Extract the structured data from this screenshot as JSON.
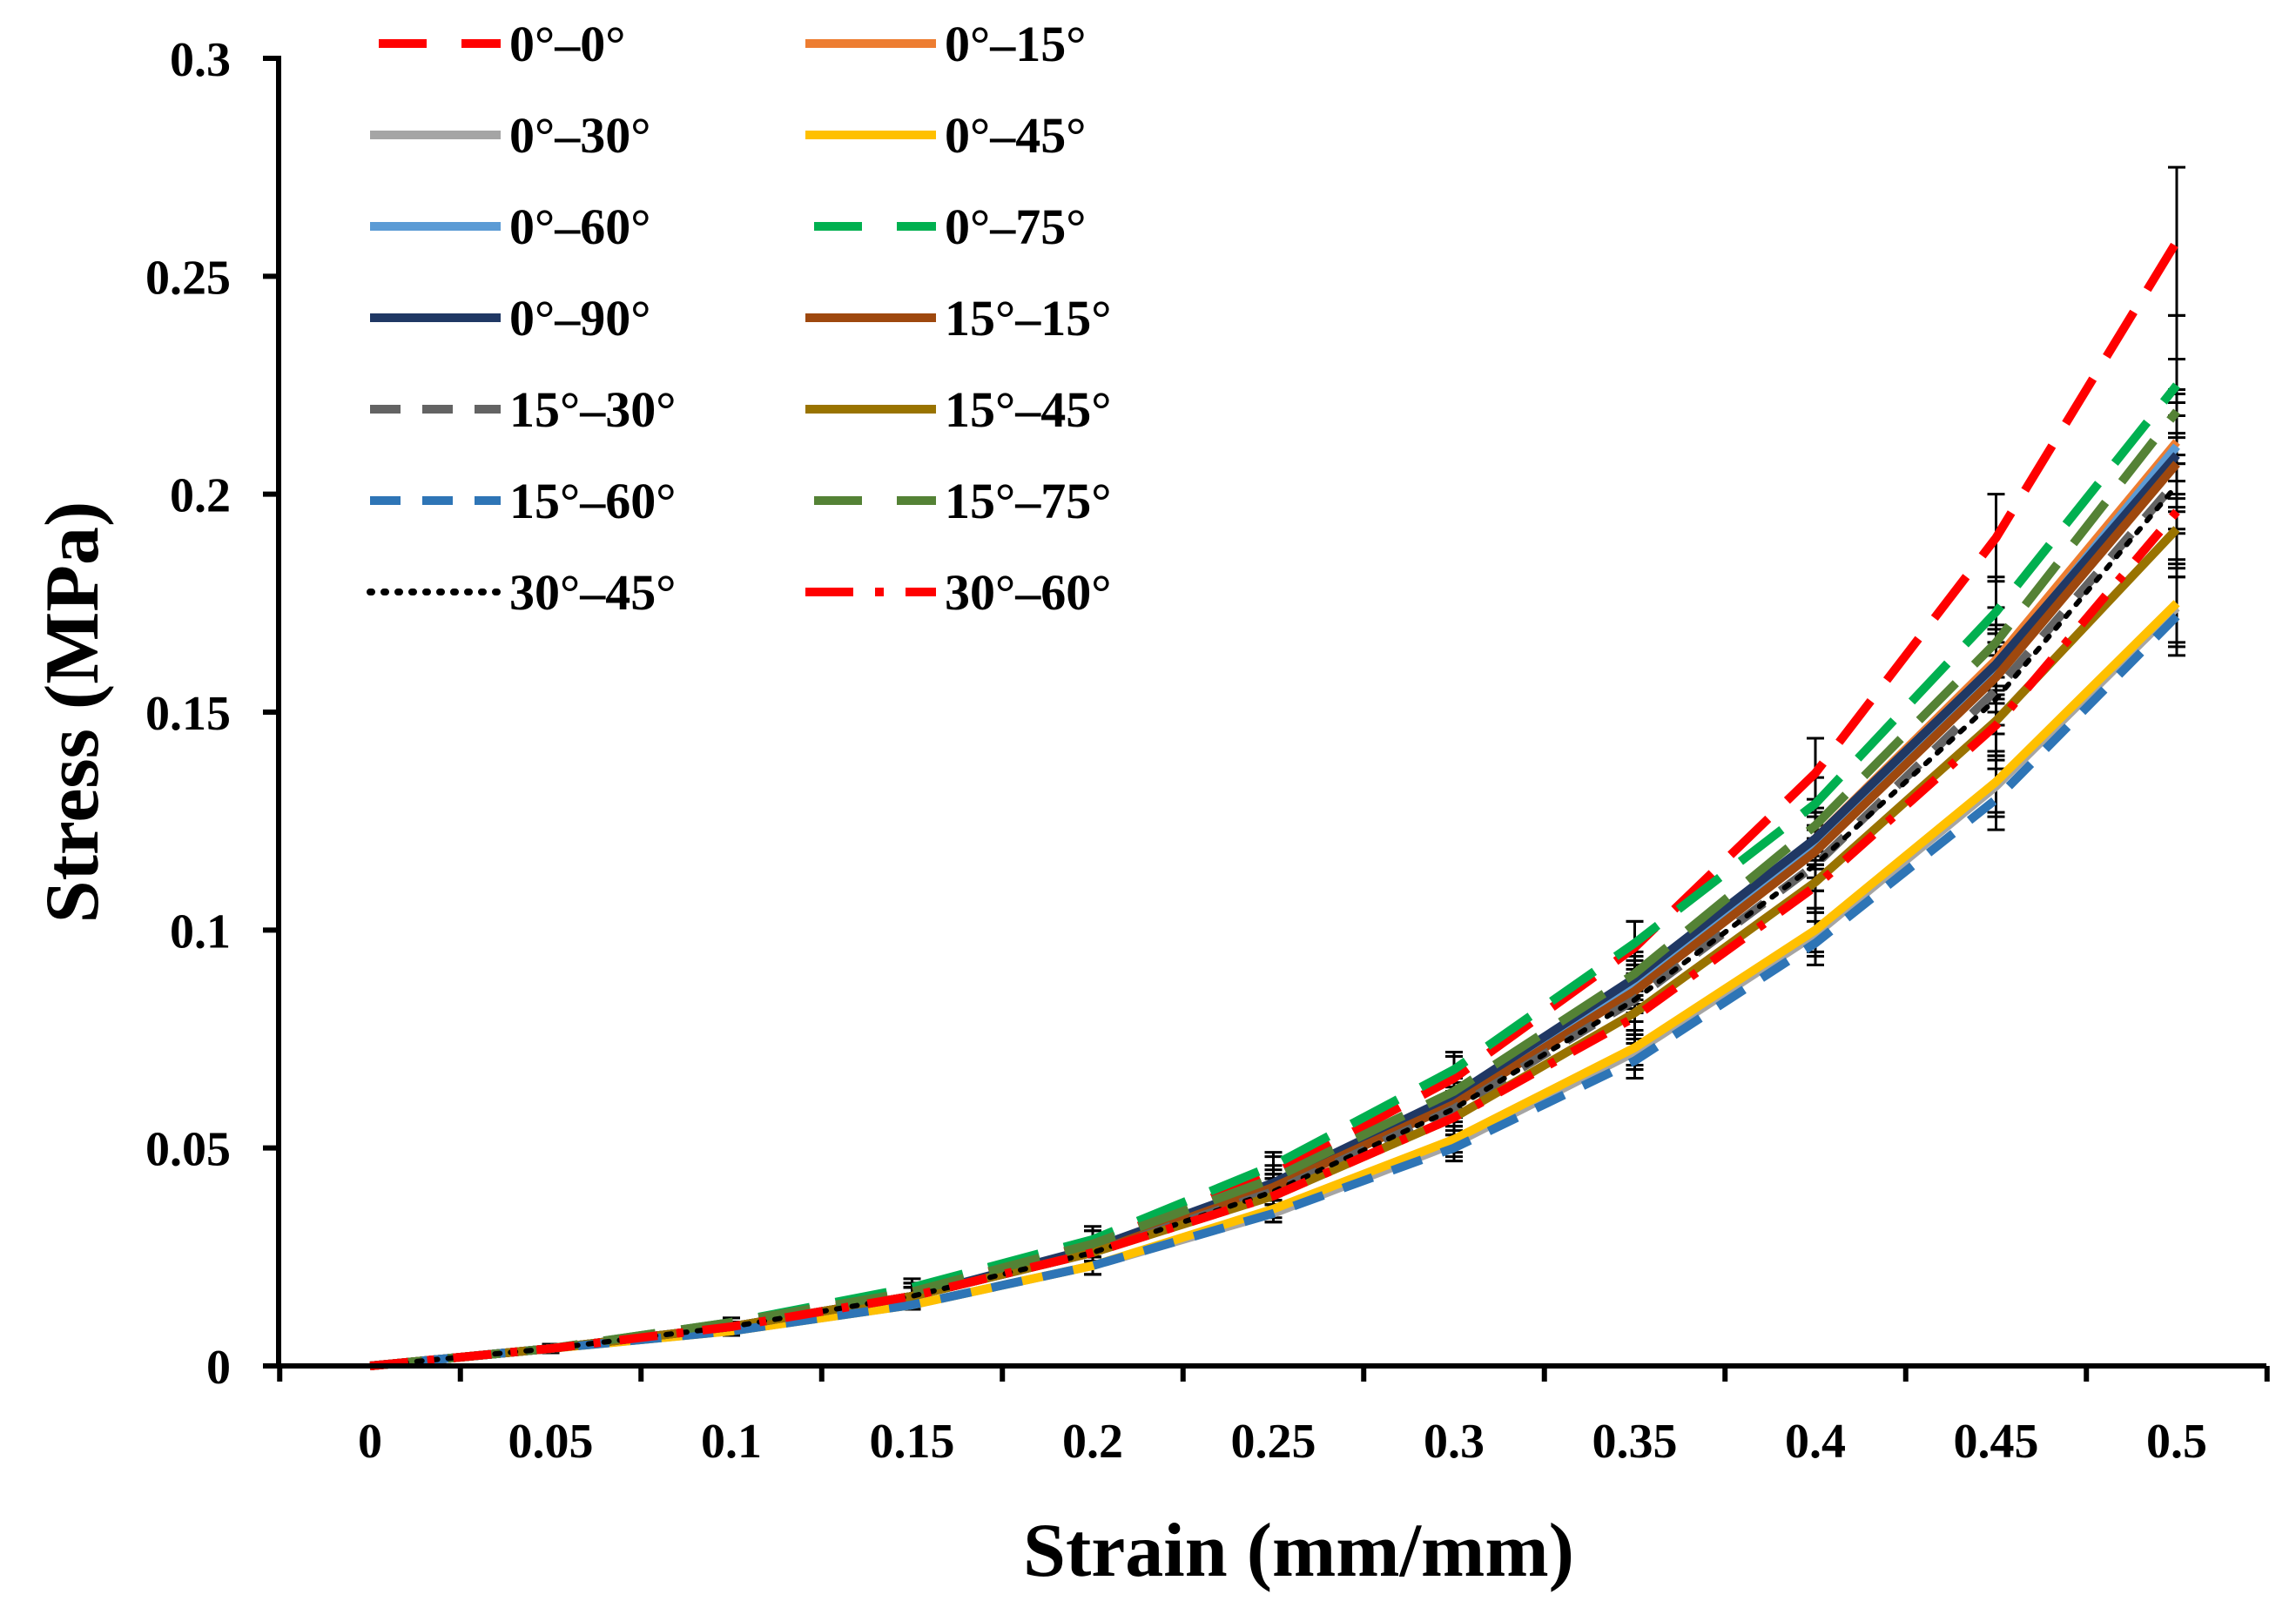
{
  "chart_data": {
    "type": "line",
    "title": "",
    "xlabel": "Strain (mm/mm)",
    "ylabel": "Stress (MPa)",
    "xlim": [
      0,
      0.5
    ],
    "ylim": [
      0,
      0.3
    ],
    "x": [
      0,
      0.05,
      0.1,
      0.15,
      0.2,
      0.25,
      0.3,
      0.35,
      0.4,
      0.45,
      0.5
    ],
    "x_tick_labels": [
      "0",
      "0.05",
      "0.1",
      "0.15",
      "0.2",
      "0.25",
      "0.3",
      "0.35",
      "0.4",
      "0.45",
      "0.5"
    ],
    "y_ticks": [
      0,
      0.05,
      0.1,
      0.15,
      0.2,
      0.25,
      0.3
    ],
    "y_tick_labels": [
      "0",
      "0.05",
      "0.1",
      "0.15",
      "0.2",
      "0.25",
      "0.3"
    ],
    "grid": false,
    "legend_position": "top-left",
    "series": [
      {
        "name": "0°–0°",
        "color": "#ff0000",
        "dash": "longdash",
        "values": [
          0,
          0.004,
          0.009,
          0.017,
          0.028,
          0.044,
          0.066,
          0.096,
          0.136,
          0.19,
          0.258
        ],
        "error": [
          0,
          0.001,
          0.001,
          0.002,
          0.003,
          0.004,
          0.005,
          0.006,
          0.008,
          0.01,
          0.017
        ]
      },
      {
        "name": "0°–15°",
        "color": "#ed7d31",
        "dash": "solid",
        "values": [
          0,
          0.004,
          0.009,
          0.016,
          0.026,
          0.041,
          0.061,
          0.087,
          0.121,
          0.162,
          0.212
        ],
        "error": [
          0,
          0.001,
          0.001,
          0.002,
          0.002,
          0.003,
          0.004,
          0.005,
          0.006,
          0.008,
          0.012
        ]
      },
      {
        "name": "0°–30°",
        "color": "#a5a5a5",
        "dash": "solid",
        "values": [
          0,
          0.004,
          0.008,
          0.014,
          0.023,
          0.035,
          0.051,
          0.072,
          0.099,
          0.133,
          0.174
        ],
        "error": [
          0,
          0.001,
          0.001,
          0.001,
          0.002,
          0.002,
          0.003,
          0.004,
          0.005,
          0.007,
          0.009
        ]
      },
      {
        "name": "0°–45°",
        "color": "#ffc000",
        "dash": "solid",
        "values": [
          0,
          0.004,
          0.008,
          0.014,
          0.023,
          0.036,
          0.052,
          0.073,
          0.1,
          0.134,
          0.175
        ],
        "error": [
          0,
          0.001,
          0.001,
          0.001,
          0.002,
          0.002,
          0.003,
          0.004,
          0.005,
          0.007,
          0.009
        ]
      },
      {
        "name": "0°–60°",
        "color": "#5b9bd5",
        "dash": "solid",
        "values": [
          0,
          0.004,
          0.009,
          0.016,
          0.026,
          0.041,
          0.061,
          0.088,
          0.12,
          0.16,
          0.211
        ],
        "error": [
          0,
          0.001,
          0.001,
          0.002,
          0.002,
          0.003,
          0.004,
          0.005,
          0.006,
          0.008,
          0.012
        ]
      },
      {
        "name": "0°–75°",
        "color": "#00b050",
        "dash": "longdash",
        "values": [
          0,
          0.004,
          0.01,
          0.018,
          0.029,
          0.046,
          0.068,
          0.097,
          0.129,
          0.173,
          0.225
        ],
        "error": [
          0,
          0.001,
          0.001,
          0.002,
          0.003,
          0.003,
          0.004,
          0.005,
          0.006,
          0.008,
          0.016
        ]
      },
      {
        "name": "0°–90°",
        "color": "#203864",
        "dash": "solid",
        "values": [
          0,
          0.004,
          0.009,
          0.016,
          0.027,
          0.042,
          0.062,
          0.089,
          0.121,
          0.161,
          0.209
        ],
        "error": [
          0,
          0.001,
          0.001,
          0.002,
          0.002,
          0.003,
          0.004,
          0.005,
          0.006,
          0.008,
          0.012
        ]
      },
      {
        "name": "15°–15°",
        "color": "#9e480e",
        "dash": "solid",
        "values": [
          0,
          0.004,
          0.009,
          0.016,
          0.026,
          0.041,
          0.06,
          0.086,
          0.118,
          0.158,
          0.207
        ],
        "error": [
          0,
          0.001,
          0.001,
          0.002,
          0.002,
          0.003,
          0.004,
          0.005,
          0.006,
          0.008,
          0.011
        ]
      },
      {
        "name": "15°–30°",
        "color": "#636363",
        "dash": "dash",
        "values": [
          0,
          0.004,
          0.009,
          0.016,
          0.026,
          0.04,
          0.059,
          0.084,
          0.115,
          0.155,
          0.203
        ],
        "error": [
          0,
          0.001,
          0.001,
          0.002,
          0.002,
          0.003,
          0.004,
          0.005,
          0.006,
          0.008,
          0.011
        ]
      },
      {
        "name": "15°–45°",
        "color": "#997300",
        "dash": "solid",
        "values": [
          0,
          0.004,
          0.009,
          0.016,
          0.026,
          0.039,
          0.057,
          0.081,
          0.111,
          0.148,
          0.192
        ],
        "error": [
          0,
          0.001,
          0.001,
          0.002,
          0.002,
          0.003,
          0.004,
          0.005,
          0.006,
          0.008,
          0.011
        ]
      },
      {
        "name": "15°–60°",
        "color": "#2e75b6",
        "dash": "dash",
        "values": [
          0,
          0.004,
          0.008,
          0.014,
          0.023,
          0.035,
          0.05,
          0.07,
          0.097,
          0.13,
          0.172
        ],
        "error": [
          0,
          0.001,
          0.001,
          0.001,
          0.002,
          0.002,
          0.003,
          0.004,
          0.005,
          0.007,
          0.009
        ]
      },
      {
        "name": "15°–75°",
        "color": "#548235",
        "dash": "longdash",
        "values": [
          0,
          0.004,
          0.01,
          0.017,
          0.028,
          0.043,
          0.063,
          0.09,
          0.124,
          0.166,
          0.219
        ],
        "error": [
          0,
          0.001,
          0.001,
          0.002,
          0.003,
          0.003,
          0.004,
          0.005,
          0.006,
          0.008,
          0.012
        ]
      },
      {
        "name": "30°–45°",
        "color": "#000000",
        "dash": "dot",
        "values": [
          0,
          0.004,
          0.009,
          0.016,
          0.026,
          0.04,
          0.059,
          0.084,
          0.115,
          0.153,
          0.202
        ],
        "error": [
          0,
          0.001,
          0.001,
          0.002,
          0.002,
          0.003,
          0.004,
          0.005,
          0.006,
          0.008,
          0.011
        ]
      },
      {
        "name": "30°–60°",
        "color": "#ff0000",
        "dash": "dashdot",
        "values": [
          0,
          0.004,
          0.009,
          0.016,
          0.026,
          0.039,
          0.057,
          0.08,
          0.11,
          0.147,
          0.196
        ],
        "error": [
          0,
          0.001,
          0.001,
          0.002,
          0.002,
          0.003,
          0.004,
          0.005,
          0.006,
          0.008,
          0.011
        ]
      }
    ]
  }
}
